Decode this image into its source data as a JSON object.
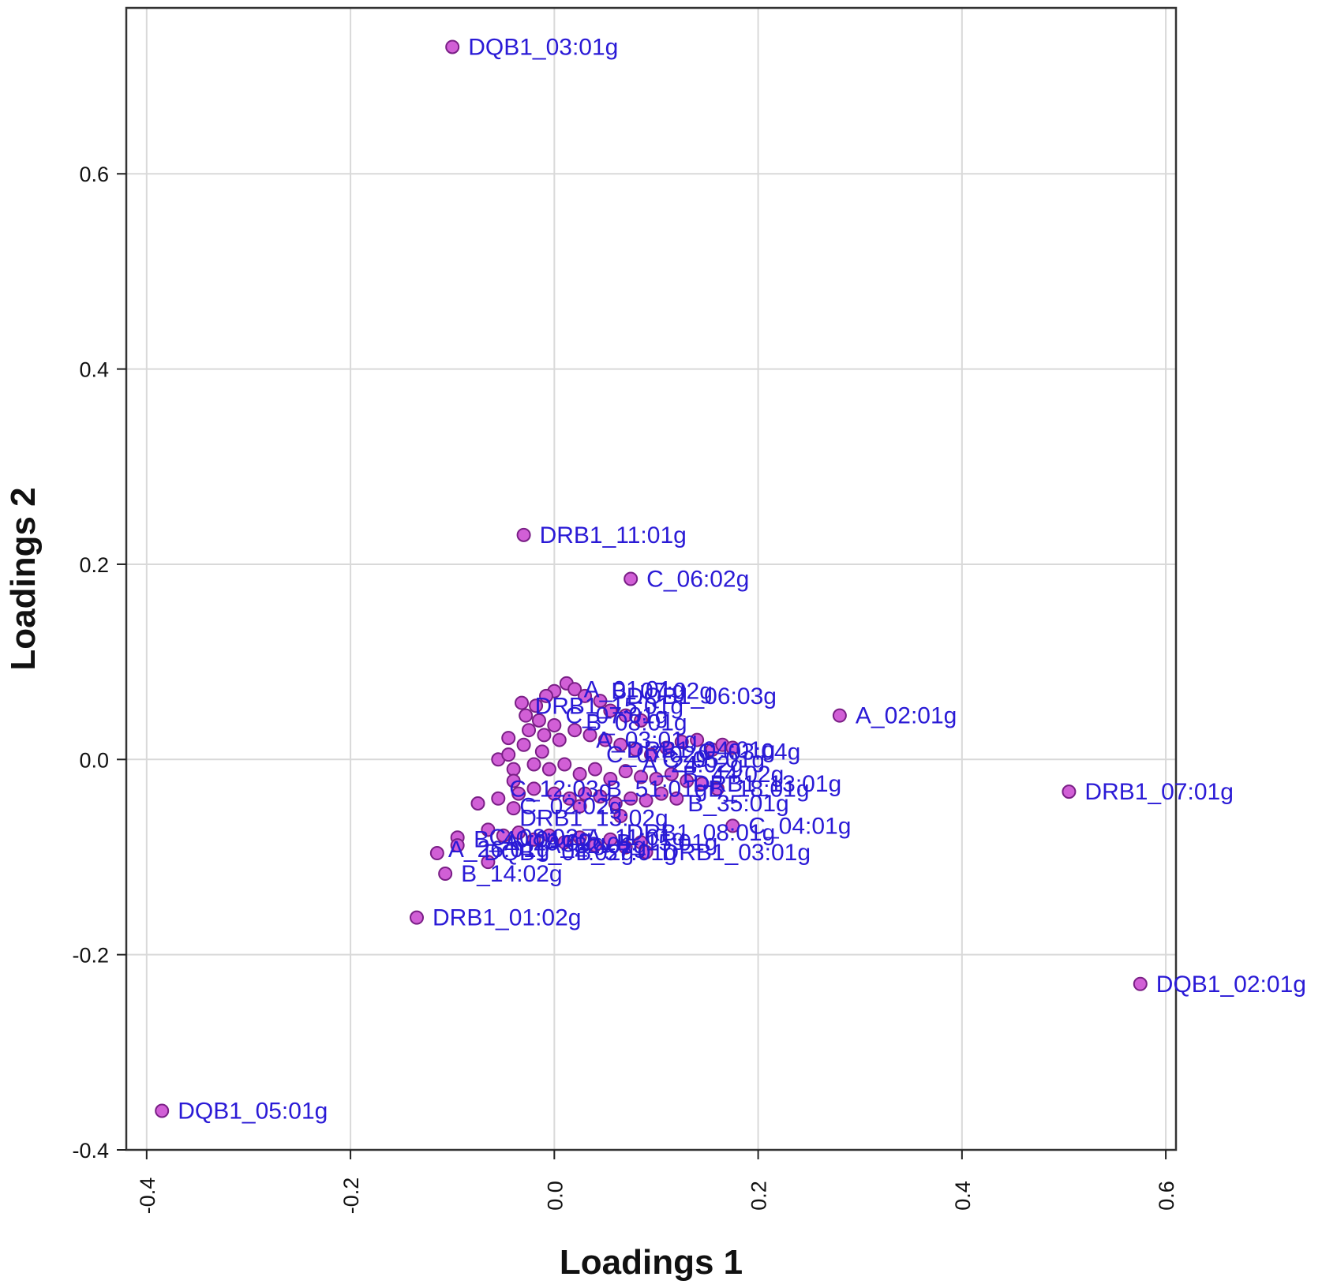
{
  "chart_data": {
    "type": "scatter",
    "title": "",
    "xlabel": "Loadings 1",
    "ylabel": "Loadings 2",
    "xlim": [
      -0.42,
      0.61
    ],
    "ylim": [
      -0.4,
      0.77
    ],
    "xticks": [
      -0.4,
      -0.2,
      0.0,
      0.2,
      0.4,
      0.6
    ],
    "xtick_labels": [
      "-0.4",
      "-0.2",
      "0.0",
      "0.2",
      "0.4",
      "0.6"
    ],
    "yticks": [
      -0.4,
      -0.2,
      0.0,
      0.2,
      0.4,
      0.6
    ],
    "ytick_labels": [
      "-0.4",
      "-0.2",
      "0.0",
      "0.2",
      "0.4",
      "0.6"
    ],
    "grid": true,
    "marker_color": "#d15fd6",
    "marker_edge_color": "#7a1f86",
    "label_color": "#2a1ad6",
    "labeled_points": [
      {
        "label": "DQB1_03:01g",
        "x": -0.1,
        "y": 0.73
      },
      {
        "label": "DRB1_11:01g",
        "x": -0.03,
        "y": 0.23
      },
      {
        "label": "C_06:02g",
        "x": 0.075,
        "y": 0.185
      },
      {
        "label": "A_02:01g",
        "x": 0.28,
        "y": 0.045
      },
      {
        "label": "DRB1_07:01g",
        "x": 0.505,
        "y": -0.033
      },
      {
        "label": "DQB1_02:01g",
        "x": 0.575,
        "y": -0.23
      },
      {
        "label": "C_04:01g",
        "x": 0.175,
        "y": -0.068
      },
      {
        "label": "DRB1_03:01g",
        "x": 0.09,
        "y": -0.095
      },
      {
        "label": "B_14:02g",
        "x": -0.107,
        "y": -0.117
      },
      {
        "label": "DRB1_01:02g",
        "x": -0.135,
        "y": -0.162
      },
      {
        "label": "DQB1_05:01g",
        "x": -0.385,
        "y": -0.36
      }
    ],
    "cluster_points": [
      [
        -0.032,
        0.058
      ],
      [
        -0.015,
        0.04
      ],
      [
        0.0,
        0.07
      ],
      [
        0.012,
        0.078
      ],
      [
        0.02,
        0.072
      ],
      [
        0.03,
        0.065
      ],
      [
        0.045,
        0.06
      ],
      [
        0.055,
        0.05
      ],
      [
        0.07,
        0.045
      ],
      [
        0.085,
        0.04
      ],
      [
        -0.025,
        0.03
      ],
      [
        -0.01,
        0.025
      ],
      [
        0.005,
        0.02
      ],
      [
        0.02,
        0.03
      ],
      [
        0.035,
        0.025
      ],
      [
        0.05,
        0.02
      ],
      [
        0.065,
        0.015
      ],
      [
        0.08,
        0.01
      ],
      [
        0.095,
        0.005
      ],
      [
        0.11,
        0.012
      ],
      [
        0.125,
        0.018
      ],
      [
        0.14,
        0.02
      ],
      [
        0.155,
        0.01
      ],
      [
        0.165,
        0.015
      ],
      [
        0.175,
        0.012
      ],
      [
        -0.055,
        0.0
      ],
      [
        -0.04,
        -0.01
      ],
      [
        -0.03,
        0.015
      ],
      [
        -0.02,
        -0.005
      ],
      [
        -0.005,
        -0.01
      ],
      [
        0.01,
        -0.005
      ],
      [
        0.025,
        -0.015
      ],
      [
        0.04,
        -0.01
      ],
      [
        0.055,
        -0.02
      ],
      [
        0.07,
        -0.012
      ],
      [
        0.085,
        -0.018
      ],
      [
        0.1,
        -0.02
      ],
      [
        0.115,
        -0.015
      ],
      [
        0.13,
        -0.022
      ],
      [
        0.145,
        -0.025
      ],
      [
        0.16,
        -0.03
      ],
      [
        -0.035,
        -0.035
      ],
      [
        -0.02,
        -0.03
      ],
      [
        0.0,
        -0.035
      ],
      [
        0.015,
        -0.04
      ],
      [
        0.03,
        -0.035
      ],
      [
        0.045,
        -0.038
      ],
      [
        0.06,
        -0.045
      ],
      [
        0.075,
        -0.04
      ],
      [
        0.09,
        -0.042
      ],
      [
        0.105,
        -0.035
      ],
      [
        0.12,
        -0.04
      ],
      [
        -0.075,
        -0.045
      ],
      [
        -0.055,
        -0.04
      ],
      [
        -0.04,
        -0.05
      ],
      [
        0.025,
        -0.048
      ],
      [
        0.065,
        -0.058
      ],
      [
        -0.065,
        -0.072
      ],
      [
        -0.05,
        -0.078
      ],
      [
        -0.035,
        -0.075
      ],
      [
        -0.02,
        -0.082
      ],
      [
        -0.005,
        -0.078
      ],
      [
        0.01,
        -0.085
      ],
      [
        0.025,
        -0.08
      ],
      [
        0.04,
        -0.088
      ],
      [
        0.055,
        -0.082
      ],
      [
        0.07,
        -0.09
      ],
      [
        0.085,
        -0.085
      ],
      [
        -0.095,
        -0.08
      ],
      [
        -0.095,
        -0.088
      ],
      [
        -0.115,
        -0.096
      ],
      [
        -0.065,
        -0.105
      ],
      [
        -0.045,
        0.022
      ],
      [
        -0.045,
        0.005
      ],
      [
        -0.04,
        -0.022
      ],
      [
        -0.028,
        0.045
      ],
      [
        -0.018,
        0.055
      ],
      [
        -0.008,
        0.065
      ],
      [
        0.0,
        0.035
      ],
      [
        -0.012,
        0.008
      ]
    ],
    "cluster_labels": [
      {
        "label": "A_01:01g",
        "x": 0.018,
        "y": 0.072
      },
      {
        "label": "B_07:02g",
        "x": 0.045,
        "y": 0.07
      },
      {
        "label": "DQB1_06:03g",
        "x": 0.06,
        "y": 0.065
      },
      {
        "label": "DRB1_15:01g",
        "x": -0.03,
        "y": 0.055
      },
      {
        "label": "C_07:01g",
        "x": 0.0,
        "y": 0.045
      },
      {
        "label": "B_08:01g",
        "x": 0.02,
        "y": 0.038
      },
      {
        "label": "A_03:01g",
        "x": 0.03,
        "y": 0.02
      },
      {
        "label": "C_07:02g",
        "x": 0.04,
        "y": 0.005
      },
      {
        "label": "DRB1_04:01g",
        "x": 0.06,
        "y": 0.01
      },
      {
        "label": "A_24:02g",
        "x": 0.075,
        "y": -0.005
      },
      {
        "label": "C_05:01g",
        "x": 0.095,
        "y": 0.0
      },
      {
        "label": "B_44:02g",
        "x": 0.115,
        "y": -0.015
      },
      {
        "label": "DRB1_13:01g",
        "x": 0.125,
        "y": -0.025
      },
      {
        "label": "C_03:04g",
        "x": 0.13,
        "y": 0.008
      },
      {
        "label": "B_18:01g",
        "x": 0.14,
        "y": -0.03
      },
      {
        "label": "B_35:01g",
        "x": 0.12,
        "y": -0.045
      },
      {
        "label": "C_12:03g",
        "x": -0.055,
        "y": -0.03
      },
      {
        "label": "C_02:02g",
        "x": -0.045,
        "y": -0.048
      },
      {
        "label": "B_51:01g",
        "x": 0.04,
        "y": -0.03
      },
      {
        "label": "DRB1_13:02g",
        "x": -0.045,
        "y": -0.06
      },
      {
        "label": "C_08:02g",
        "x": -0.075,
        "y": -0.08
      },
      {
        "label": "A_26:01g",
        "x": -0.115,
        "y": -0.092
      },
      {
        "label": "DQB1_04:02g",
        "x": -0.08,
        "y": -0.095
      },
      {
        "label": "A_11:01g",
        "x": 0.02,
        "y": -0.08
      },
      {
        "label": "B_15:01g",
        "x": 0.05,
        "y": -0.085
      },
      {
        "label": "DRB1_08:01g",
        "x": 0.06,
        "y": -0.075
      },
      {
        "label": "A_29:02g",
        "x": -0.06,
        "y": -0.085
      },
      {
        "label": "B_40:01g",
        "x": -0.09,
        "y": -0.082
      },
      {
        "label": "B_57:01g",
        "x": 0.01,
        "y": -0.095
      },
      {
        "label": "A_32:01g",
        "x": -0.02,
        "y": -0.088
      }
    ]
  }
}
